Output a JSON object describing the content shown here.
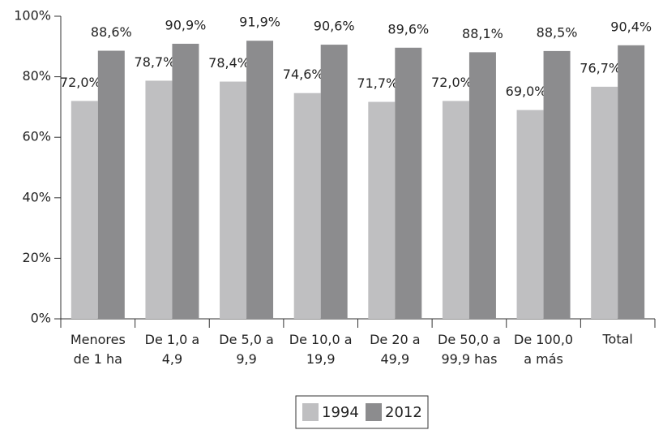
{
  "chart_data": {
    "type": "bar",
    "categories": [
      "Menores\nde 1 ha",
      "De 1,0 a\n4,9",
      "De 5,0 a\n9,9",
      "De 10,0 a\n19,9",
      "De 20 a\n49,9",
      "De 50,0 a\n99,9 has",
      "De 100,0\na más",
      "Total"
    ],
    "series": [
      {
        "name": "1994",
        "color": "#bfbfc1",
        "values": [
          72.0,
          78.7,
          78.4,
          74.6,
          71.7,
          72.0,
          69.0,
          76.7
        ],
        "value_labels": [
          "72,0%",
          "78,7%",
          "78,4%",
          "74,6%",
          "71,7%",
          "72,0%",
          "69,0%",
          "76,7%"
        ]
      },
      {
        "name": "2012",
        "color": "#8c8c8e",
        "values": [
          88.6,
          90.9,
          91.9,
          90.6,
          89.6,
          88.1,
          88.5,
          90.4
        ],
        "value_labels": [
          "88,6%",
          "90,9%",
          "91,9%",
          "90,6%",
          "89,6%",
          "88,1%",
          "88,5%",
          "90,4%"
        ]
      }
    ],
    "ylim": [
      0,
      100
    ],
    "yticks": [
      {
        "value": 0,
        "label": "0%"
      },
      {
        "value": 20,
        "label": "20%"
      },
      {
        "value": 40,
        "label": "40%"
      },
      {
        "value": 60,
        "label": "60%"
      },
      {
        "value": 80,
        "label": "80%"
      },
      {
        "value": 100,
        "label": "100%"
      }
    ],
    "grid": false,
    "legend": "bottom"
  }
}
